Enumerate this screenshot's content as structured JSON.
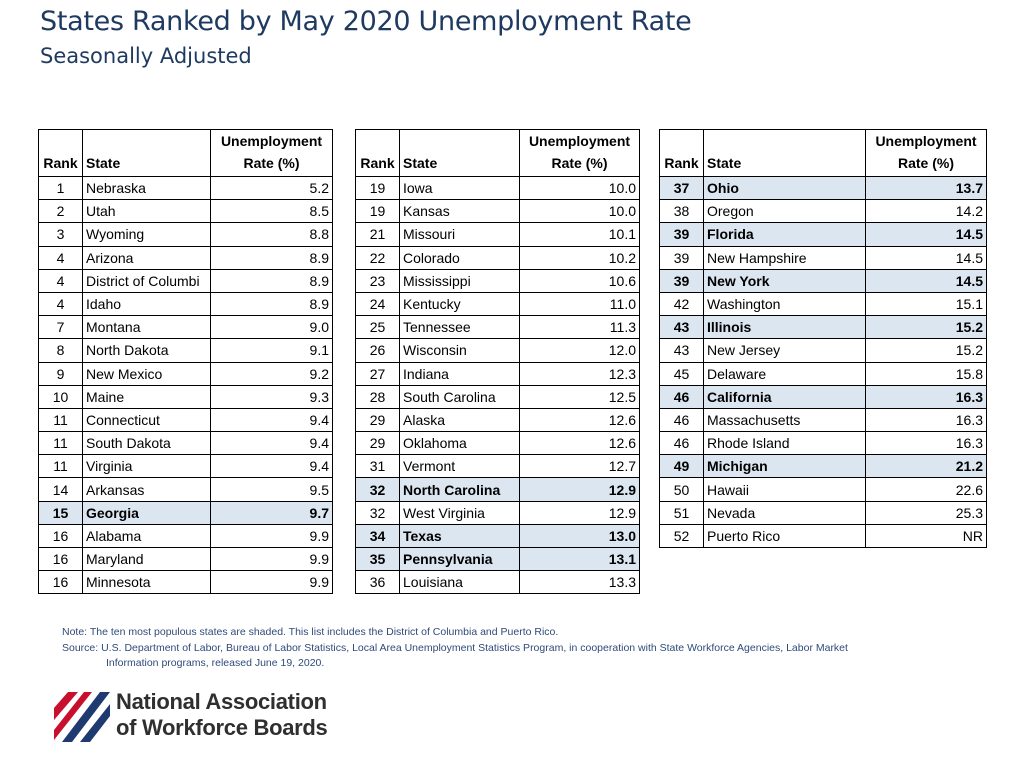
{
  "page": {
    "title": "States Ranked by May 2020 Unemployment Rate",
    "subtitle": "Seasonally Adjusted"
  },
  "headers": {
    "rank": "Rank",
    "state": "State",
    "rate_line1": "Unemployment",
    "rate_line2": "Rate (%)"
  },
  "tables": [
    [
      {
        "rank": "1",
        "state": "Nebraska",
        "rate": "5.2",
        "shaded": false
      },
      {
        "rank": "2",
        "state": "Utah",
        "rate": "8.5",
        "shaded": false
      },
      {
        "rank": "3",
        "state": "Wyoming",
        "rate": "8.8",
        "shaded": false
      },
      {
        "rank": "4",
        "state": "Arizona",
        "rate": "8.9",
        "shaded": false
      },
      {
        "rank": "4",
        "state": "District of Columbi",
        "rate": "8.9",
        "shaded": false
      },
      {
        "rank": "4",
        "state": "Idaho",
        "rate": "8.9",
        "shaded": false
      },
      {
        "rank": "7",
        "state": "Montana",
        "rate": "9.0",
        "shaded": false
      },
      {
        "rank": "8",
        "state": "North Dakota",
        "rate": "9.1",
        "shaded": false
      },
      {
        "rank": "9",
        "state": "New Mexico",
        "rate": "9.2",
        "shaded": false
      },
      {
        "rank": "10",
        "state": "Maine",
        "rate": "9.3",
        "shaded": false
      },
      {
        "rank": "11",
        "state": "Connecticut",
        "rate": "9.4",
        "shaded": false
      },
      {
        "rank": "11",
        "state": "South Dakota",
        "rate": "9.4",
        "shaded": false
      },
      {
        "rank": "11",
        "state": "Virginia",
        "rate": "9.4",
        "shaded": false
      },
      {
        "rank": "14",
        "state": "Arkansas",
        "rate": "9.5",
        "shaded": false
      },
      {
        "rank": "15",
        "state": "Georgia",
        "rate": "9.7",
        "shaded": true
      },
      {
        "rank": "16",
        "state": "Alabama",
        "rate": "9.9",
        "shaded": false
      },
      {
        "rank": "16",
        "state": "Maryland",
        "rate": "9.9",
        "shaded": false
      },
      {
        "rank": "16",
        "state": "Minnesota",
        "rate": "9.9",
        "shaded": false
      }
    ],
    [
      {
        "rank": "19",
        "state": "Iowa",
        "rate": "10.0",
        "shaded": false
      },
      {
        "rank": "19",
        "state": "Kansas",
        "rate": "10.0",
        "shaded": false
      },
      {
        "rank": "21",
        "state": "Missouri",
        "rate": "10.1",
        "shaded": false
      },
      {
        "rank": "22",
        "state": "Colorado",
        "rate": "10.2",
        "shaded": false
      },
      {
        "rank": "23",
        "state": "Mississippi",
        "rate": "10.6",
        "shaded": false
      },
      {
        "rank": "24",
        "state": "Kentucky",
        "rate": "11.0",
        "shaded": false
      },
      {
        "rank": "25",
        "state": "Tennessee",
        "rate": "11.3",
        "shaded": false
      },
      {
        "rank": "26",
        "state": "Wisconsin",
        "rate": "12.0",
        "shaded": false
      },
      {
        "rank": "27",
        "state": "Indiana",
        "rate": "12.3",
        "shaded": false
      },
      {
        "rank": "28",
        "state": "South Carolina",
        "rate": "12.5",
        "shaded": false
      },
      {
        "rank": "29",
        "state": "Alaska",
        "rate": "12.6",
        "shaded": false
      },
      {
        "rank": "29",
        "state": "Oklahoma",
        "rate": "12.6",
        "shaded": false
      },
      {
        "rank": "31",
        "state": "Vermont",
        "rate": "12.7",
        "shaded": false
      },
      {
        "rank": "32",
        "state": "North Carolina",
        "rate": "12.9",
        "shaded": true
      },
      {
        "rank": "32",
        "state": "West Virginia",
        "rate": "12.9",
        "shaded": false
      },
      {
        "rank": "34",
        "state": "Texas",
        "rate": "13.0",
        "shaded": true
      },
      {
        "rank": "35",
        "state": "Pennsylvania",
        "rate": "13.1",
        "shaded": true
      },
      {
        "rank": "36",
        "state": "Louisiana",
        "rate": "13.3",
        "shaded": false
      }
    ],
    [
      {
        "rank": "37",
        "state": "Ohio",
        "rate": "13.7",
        "shaded": true
      },
      {
        "rank": "38",
        "state": "Oregon",
        "rate": "14.2",
        "shaded": false
      },
      {
        "rank": "39",
        "state": "Florida",
        "rate": "14.5",
        "shaded": true
      },
      {
        "rank": "39",
        "state": "New Hampshire",
        "rate": "14.5",
        "shaded": false
      },
      {
        "rank": "39",
        "state": "New York",
        "rate": "14.5",
        "shaded": true
      },
      {
        "rank": "42",
        "state": "Washington",
        "rate": "15.1",
        "shaded": false
      },
      {
        "rank": "43",
        "state": "Illinois",
        "rate": "15.2",
        "shaded": true
      },
      {
        "rank": "43",
        "state": "New Jersey",
        "rate": "15.2",
        "shaded": false
      },
      {
        "rank": "45",
        "state": "Delaware",
        "rate": "15.8",
        "shaded": false
      },
      {
        "rank": "46",
        "state": "California",
        "rate": "16.3",
        "shaded": true
      },
      {
        "rank": "46",
        "state": "Massachusetts",
        "rate": "16.3",
        "shaded": false
      },
      {
        "rank": "46",
        "state": "Rhode Island",
        "rate": "16.3",
        "shaded": false
      },
      {
        "rank": "49",
        "state": "Michigan",
        "rate": "21.2",
        "shaded": true
      },
      {
        "rank": "50",
        "state": "Hawaii",
        "rate": "22.6",
        "shaded": false
      },
      {
        "rank": "51",
        "state": "Nevada",
        "rate": "25.3",
        "shaded": false
      },
      {
        "rank": "52",
        "state": "Puerto Rico",
        "rate": "NR",
        "shaded": false
      }
    ]
  ],
  "notes": {
    "note": "Note:  The ten most populous states are shaded.  This list includes the District of Columbia and Puerto Rico.",
    "source_line1": "Source:  U.S. Department of Labor, Bureau of Labor Statistics, Local Area Unemployment Statistics Program, in cooperation with State Workforce Agencies, Labor Market",
    "source_line2": "Information programs, released June 19, 2020."
  },
  "logo": {
    "line1": "National Association",
    "line2": "of Workforce Boards"
  },
  "colors": {
    "title": "#1f3a60",
    "shade": "#dce6f1",
    "notes": "#2e4b7a",
    "logo_red": "#c8102e",
    "logo_blue": "#1f3a70"
  }
}
